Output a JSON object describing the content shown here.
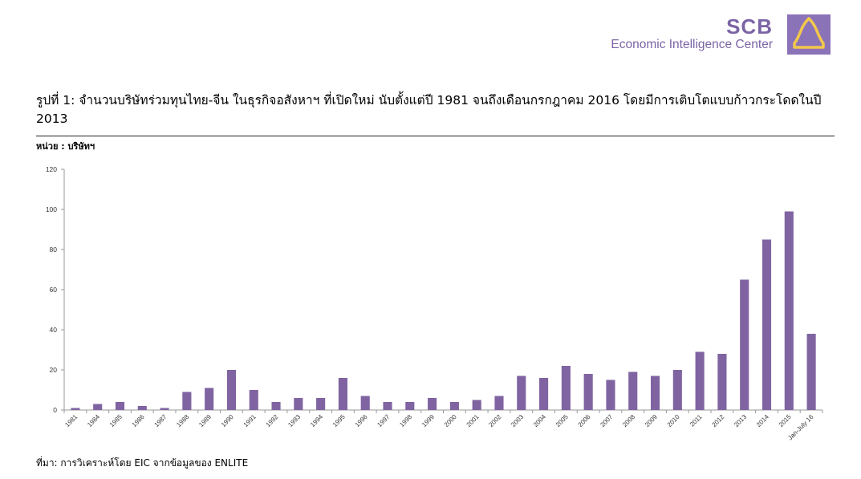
{
  "logo": {
    "brand": "SCB",
    "subtitle": "Economic Intelligence Center",
    "icon": "scb-house-logo-icon",
    "color": "#7b64a6"
  },
  "title": "รูปที่ 1: จำนวนบริษัทร่วมทุนไทย-จีน ในธุรกิจอสังหาฯ ที่เปิดใหม่ นับตั้งแต่ปี 1981 จนถึงเดือนกรกฎาคม 2016 โดยมีการเติบโตแบบก้าวกระโดดในปี 2013",
  "unit_label": "หน่วย : บริษัทฯ",
  "source": "ที่มา: การวิเคราะห์โดย EIC จากข้อมูลของ ENLITE",
  "chart_data": {
    "type": "bar",
    "categories": [
      "1981",
      "1984",
      "1985",
      "1986",
      "1987",
      "1988",
      "1989",
      "1990",
      "1991",
      "1992",
      "1993",
      "1994",
      "1995",
      "1996",
      "1997",
      "1998",
      "1999",
      "2000",
      "2001",
      "2002",
      "2003",
      "2004",
      "2005",
      "2006",
      "2007",
      "2008",
      "2009",
      "2010",
      "2011",
      "2012",
      "2013",
      "2014",
      "2015",
      "Jan-July 16"
    ],
    "values": [
      1,
      3,
      4,
      2,
      1,
      9,
      11,
      20,
      10,
      4,
      6,
      6,
      16,
      7,
      4,
      4,
      6,
      4,
      5,
      7,
      17,
      16,
      22,
      18,
      15,
      19,
      17,
      20,
      29,
      28,
      65,
      85,
      99,
      38
    ],
    "ylim": [
      0,
      120
    ],
    "yticks": [
      "0",
      "20",
      "40",
      "60",
      "80",
      "100",
      "120"
    ],
    "grid": false,
    "bar_color": "#8064a2"
  }
}
